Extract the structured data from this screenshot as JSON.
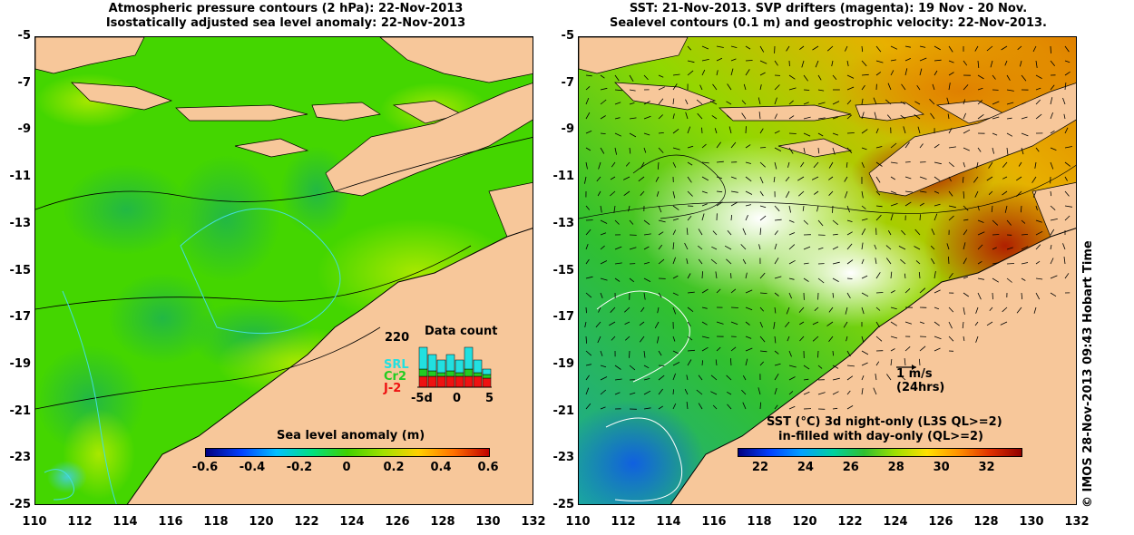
{
  "left_panel": {
    "title_line1": "Atmospheric pressure contours (2 hPa): 22-Nov-2013",
    "title_line2": "Isostatically adjusted sea level anomaly: 22-Nov-2013",
    "colorbar": {
      "title": "Sea level anomaly (m)",
      "ticks": [
        "-0.6",
        "-0.4",
        "-0.2",
        "0",
        "0.2",
        "0.4",
        "0.6"
      ],
      "range": [
        -0.6,
        0.6
      ]
    },
    "inset": {
      "title": "Data count",
      "ymax_label": "220",
      "series_labels": [
        "SRL",
        "Cr2",
        "J-2"
      ],
      "series_colors": [
        "#22e0e0",
        "#22cc22",
        "#ee1111"
      ],
      "xticks": [
        "-5d",
        "0",
        "5"
      ]
    }
  },
  "right_panel": {
    "title_line1": "SST: 21-Nov-2013. SVP drifters (magenta): 19 Nov - 20 Nov.",
    "title_line2": "Sealevel contours (0.1 m) and geostrophic velocity: 22-Nov-2013.",
    "velocity_scale": {
      "label": "1 m/s",
      "sublabel": "(24hrs)"
    },
    "colorbar": {
      "title_line1": "SST (°C)  3d night-only (L3S QL>=2)",
      "title_line2": "in-filled with day-only (QL>=2)",
      "ticks": [
        "22",
        "24",
        "26",
        "28",
        "30",
        "32"
      ],
      "range": [
        21,
        33.5
      ]
    }
  },
  "axes": {
    "x_ticks": [
      "110",
      "112",
      "114",
      "116",
      "118",
      "120",
      "122",
      "124",
      "126",
      "128",
      "130",
      "132"
    ],
    "y_ticks": [
      "-5",
      "-7",
      "-9",
      "-11",
      "-13",
      "-15",
      "-17",
      "-19",
      "-21",
      "-23",
      "-25"
    ],
    "lon_range": [
      110,
      132
    ],
    "lat_range": [
      -25,
      -5
    ]
  },
  "side_label": "© IMOS 28-Nov-2013 09:43 Hobart Time",
  "colors": {
    "land": "#f7c79a",
    "sea_anomaly_base": "#44d600",
    "contour_cyan": "#44dddd"
  }
}
